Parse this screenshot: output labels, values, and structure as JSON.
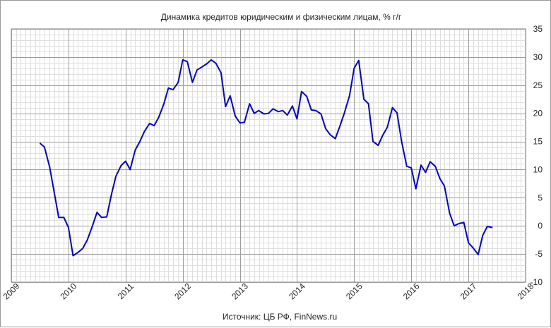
{
  "chart_data": {
    "type": "line",
    "title": "Динамика кредитов юридическим и физическим лицам, % г/г",
    "source": "Источник: ЦБ РФ, FinNews.ru",
    "xlabel": "",
    "ylabel": "",
    "xlim": [
      2009,
      2018
    ],
    "ylim": [
      -10,
      35
    ],
    "x_ticks": [
      "2009",
      "2010",
      "2011",
      "2012",
      "2013",
      "2014",
      "2015",
      "2016",
      "2017",
      "2018"
    ],
    "y_ticks": [
      "-10",
      "-5",
      "0",
      "5",
      "10",
      "15",
      "20",
      "25",
      "30",
      "35"
    ],
    "grid": true,
    "y_axis_side": "right",
    "line_color": "#0000dd",
    "series": [
      {
        "x": [
          2009.5,
          2009.58,
          2009.67,
          2009.75,
          2009.83,
          2009.92,
          2010.0,
          2010.08,
          2010.17,
          2010.25,
          2010.33,
          2010.42,
          2010.5,
          2010.58,
          2010.67,
          2010.75,
          2010.83,
          2010.92,
          2011.0,
          2011.08,
          2011.17,
          2011.25,
          2011.33,
          2011.42,
          2011.5,
          2011.58,
          2011.67,
          2011.75,
          2011.83,
          2011.92,
          2012.0,
          2012.08,
          2012.17,
          2012.25,
          2012.33,
          2012.42,
          2012.5,
          2012.58,
          2012.67,
          2012.75,
          2012.83,
          2012.92,
          2013.0,
          2013.08,
          2013.17,
          2013.25,
          2013.33,
          2013.42,
          2013.5,
          2013.58,
          2013.67,
          2013.75,
          2013.83,
          2013.92,
          2014.0,
          2014.08,
          2014.17,
          2014.25,
          2014.33,
          2014.42,
          2014.5,
          2014.58,
          2014.67,
          2014.75,
          2014.83,
          2014.92,
          2015.0,
          2015.08,
          2015.17,
          2015.25,
          2015.33,
          2015.42,
          2015.5,
          2015.58,
          2015.67,
          2015.75,
          2015.83,
          2015.92,
          2016.0,
          2016.08,
          2016.17,
          2016.25,
          2016.33,
          2016.42,
          2016.5,
          2016.58,
          2016.67,
          2016.75,
          2016.83,
          2016.92,
          2017.0,
          2017.08,
          2017.17,
          2017.25,
          2017.33,
          2017.42
        ],
        "y": [
          14.7,
          14.0,
          10.5,
          6.0,
          1.5,
          1.5,
          -0.3,
          -5.3,
          -4.7,
          -4.0,
          -2.5,
          0.0,
          2.4,
          1.5,
          1.6,
          5.5,
          8.8,
          10.7,
          11.5,
          10.0,
          13.5,
          15.0,
          16.8,
          18.2,
          17.8,
          19.3,
          21.7,
          24.5,
          24.2,
          25.5,
          29.5,
          29.2,
          25.5,
          27.7,
          28.2,
          28.8,
          29.5,
          28.9,
          27.2,
          21.2,
          23.1,
          19.5,
          18.3,
          18.4,
          21.7,
          20.0,
          20.5,
          19.9,
          20.0,
          20.8,
          20.3,
          20.5,
          19.7,
          21.3,
          19.0,
          23.9,
          23.0,
          20.6,
          20.5,
          19.9,
          17.3,
          16.2,
          15.5,
          17.7,
          20.1,
          23.2,
          28.0,
          29.4,
          22.5,
          21.7,
          15.0,
          14.3,
          16.1,
          17.5,
          21.0,
          20.1,
          15.0,
          10.6,
          10.3,
          6.6,
          10.8,
          9.5,
          11.4,
          10.6,
          8.4,
          7.1,
          2.3,
          0.0,
          0.4,
          0.6,
          -3.0,
          -3.9,
          -5.1,
          -1.7,
          -0.1,
          -0.3
        ]
      }
    ]
  }
}
